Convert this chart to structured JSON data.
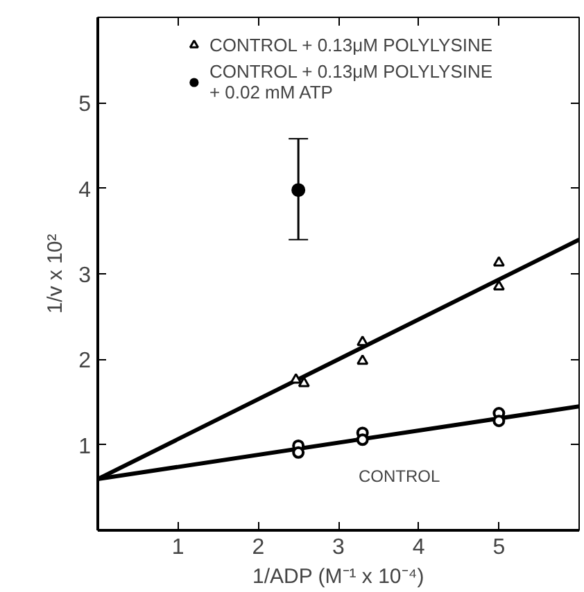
{
  "chart_data": {
    "type": "scatter",
    "xlabel": "1/ADP (M⁻¹ x 10⁻⁴)",
    "ylabel": "1/v x 10²",
    "xlim": [
      0,
      6
    ],
    "ylim": [
      0,
      6
    ],
    "xticks": [
      1,
      2,
      3,
      4,
      5
    ],
    "yticks": [
      1,
      2,
      3,
      4,
      5
    ],
    "grid": false,
    "legend": "top",
    "series": [
      {
        "name": "CONTROL + 0.13μM POLYLYSINE",
        "color": "#000000",
        "marker": "triangle",
        "x": [
          2.47,
          2.57,
          3.3,
          3.3,
          5,
          5
        ],
        "values": [
          1.76,
          1.72,
          2.2,
          1.98,
          3.13,
          2.85
        ]
      },
      {
        "name": "CONTROL + 0.13μM POLYLYSINE\n+ 0.02 mM ATP",
        "color": "#000000",
        "marker": "circle",
        "x": [
          2.5
        ],
        "values": [
          3.98
        ],
        "errors": [
          [
            3.4,
            4.58
          ]
        ]
      },
      {
        "color": "#000000",
        "marker": "circle_open",
        "x": [
          2.5,
          2.5,
          3.3,
          3.3,
          5,
          5
        ],
        "values": [
          0.99,
          0.91,
          1.14,
          1.06,
          1.37,
          1.28
        ]
      },
      {
        "type": "line",
        "color": "#000000",
        "x": [
          0,
          6
        ],
        "values": [
          0.6,
          3.4
        ]
      },
      {
        "type": "line",
        "color": "#000000",
        "x": [
          0,
          6
        ],
        "values": [
          0.6,
          1.45
        ]
      }
    ],
    "annotations": [
      "CONTROL"
    ]
  }
}
